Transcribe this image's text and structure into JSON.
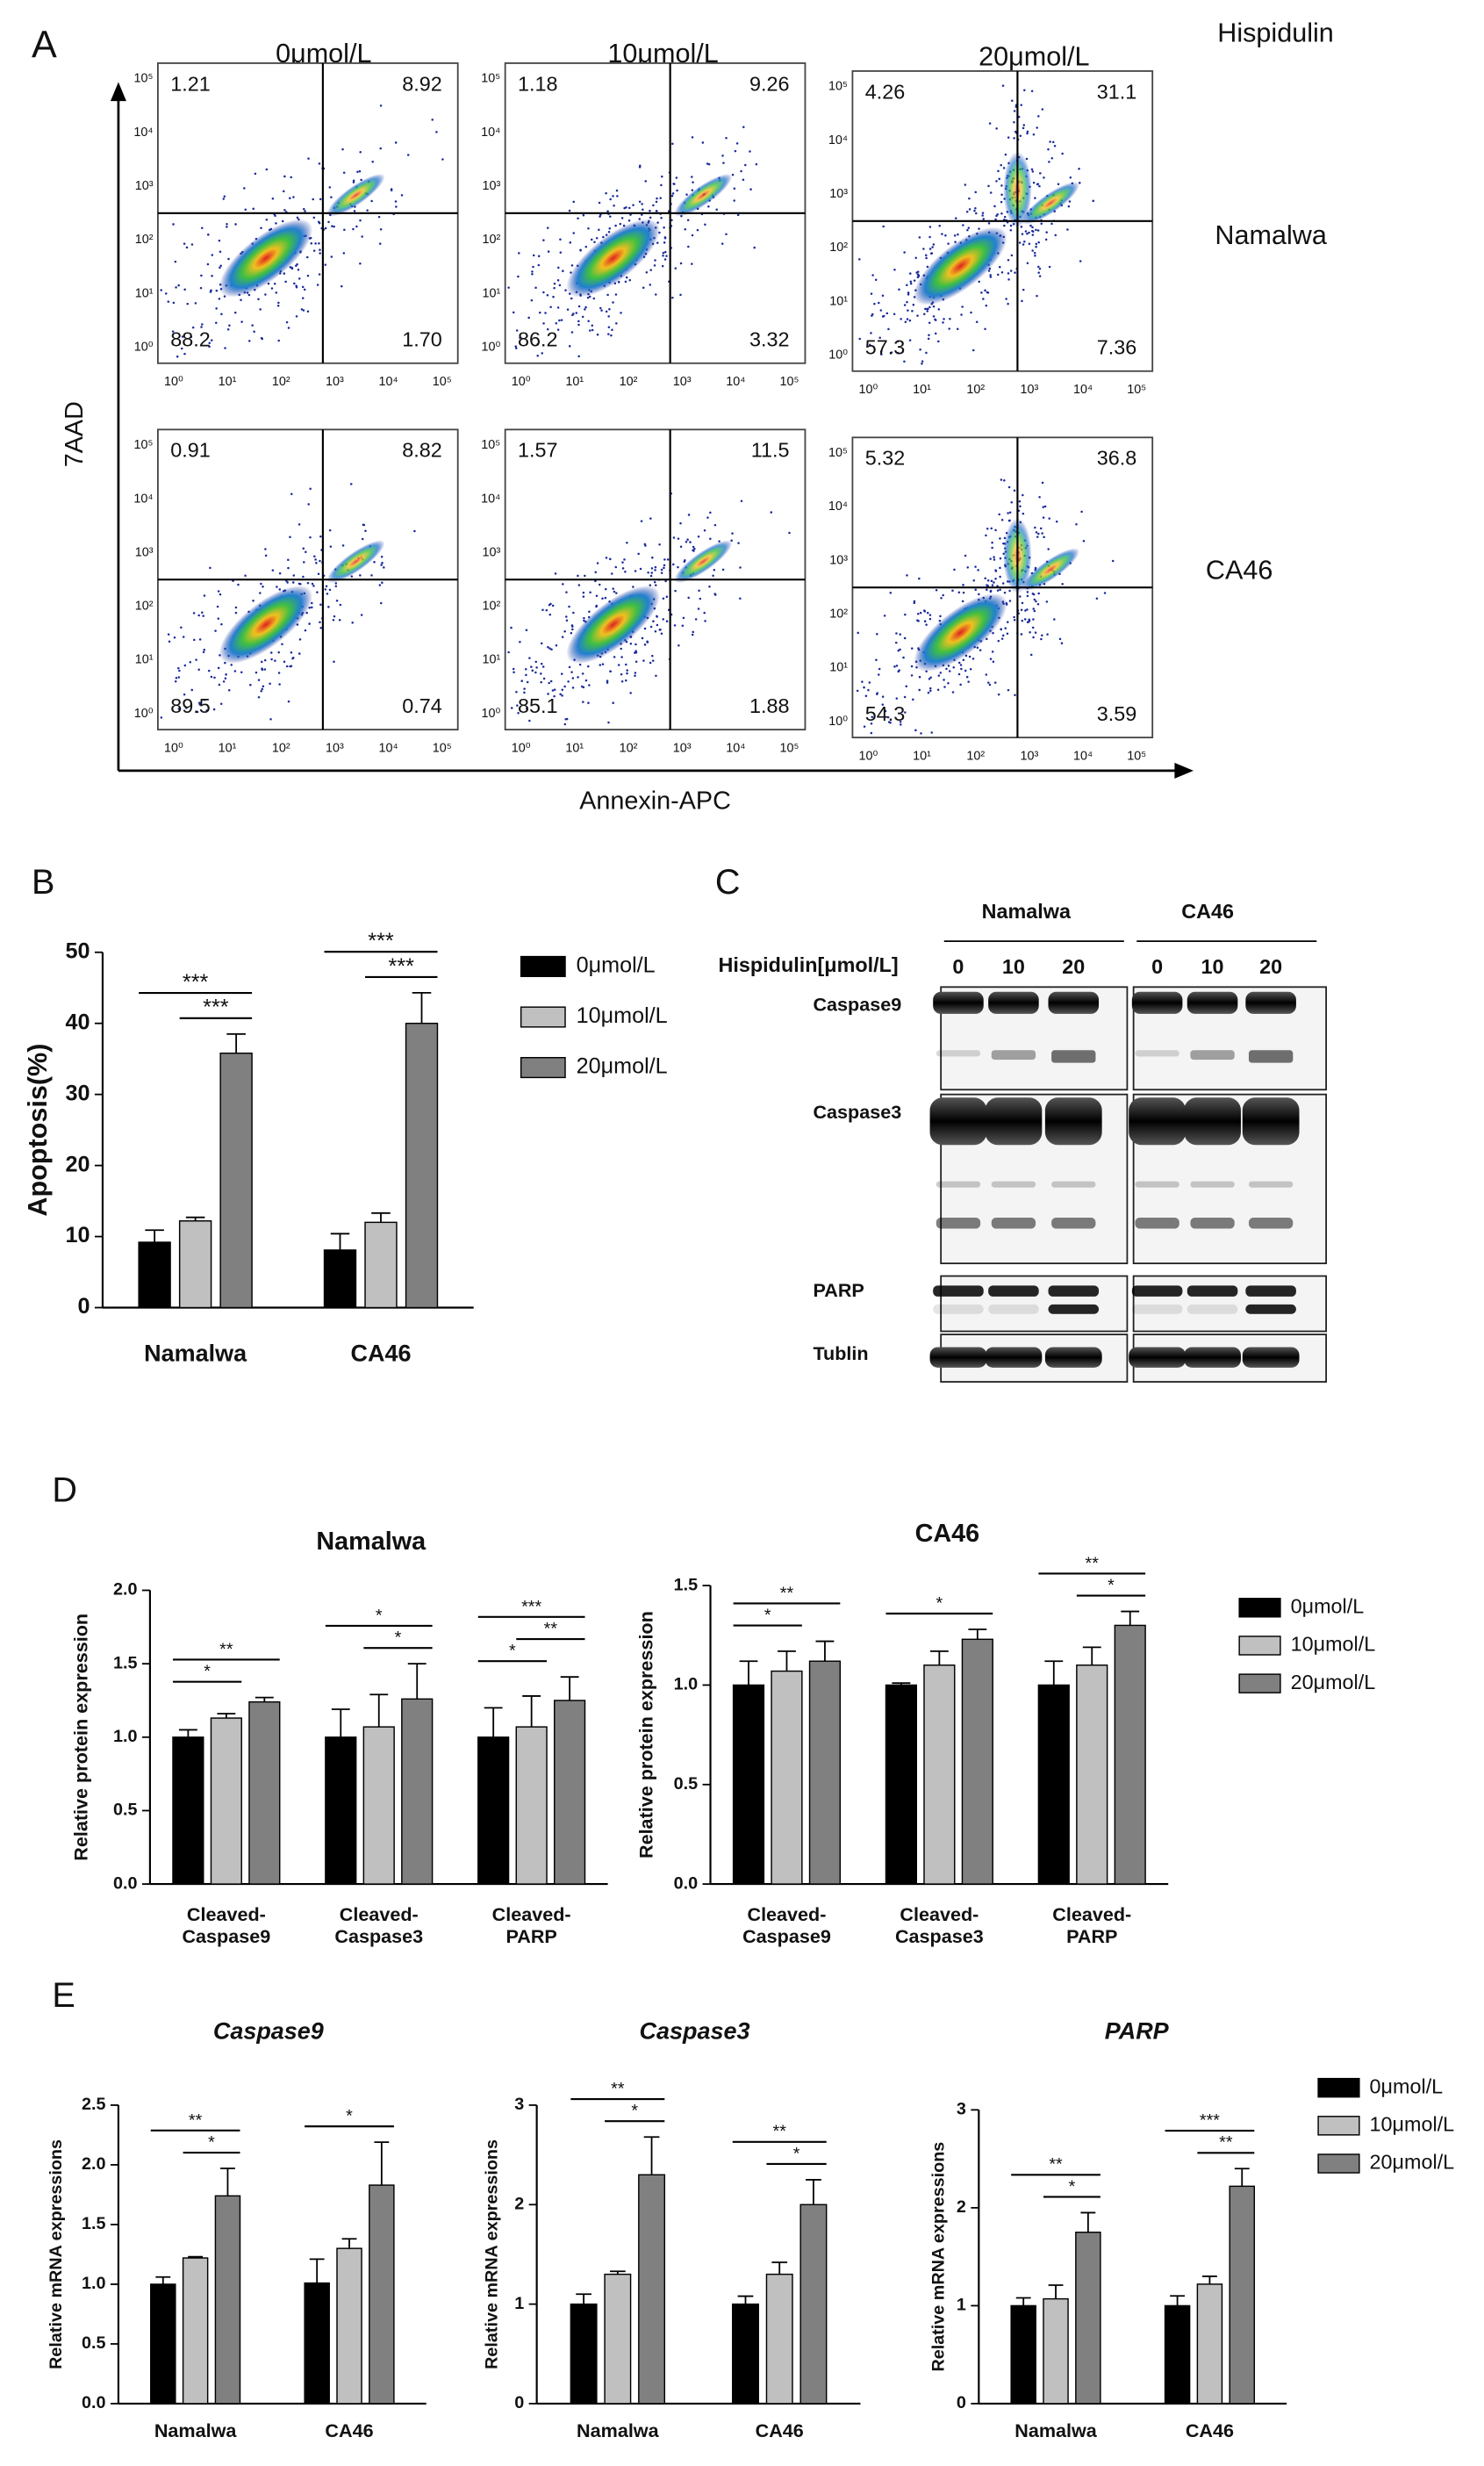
{
  "panel_labels": [
    "A",
    "B",
    "C",
    "D",
    "E"
  ],
  "flow": {
    "treatment": "Hispidulin",
    "columns": [
      "0μmol/L",
      "10μmol/L",
      "20μmol/L"
    ],
    "rows": [
      "Namalwa",
      "CA46"
    ],
    "x_label": "Annexin-APC",
    "y_label": "7AAD",
    "axis_ticks": [
      "10⁰",
      "10¹",
      "10²",
      "10³",
      "10⁴",
      "10⁵"
    ],
    "quadrants": [
      [
        [
          "1.21",
          "8.92",
          "88.2",
          "1.70"
        ],
        [
          "1.18",
          "9.26",
          "86.2",
          "3.32"
        ],
        [
          "4.26",
          "31.1",
          "57.3",
          "7.36"
        ]
      ],
      [
        [
          "0.91",
          "8.82",
          "89.5",
          "0.74"
        ],
        [
          "1.57",
          "11.5",
          "85.1",
          "1.88"
        ],
        [
          "5.32",
          "36.8",
          "54.3",
          "3.59"
        ]
      ]
    ]
  },
  "blot": {
    "groups": [
      "Namalwa",
      "CA46"
    ],
    "treatment_label": "Hispidulin[μmol/L]",
    "lanes": [
      "0",
      "10",
      "20"
    ],
    "proteins": [
      "Caspase9",
      "Caspase3",
      "PARP",
      "Tublin"
    ]
  },
  "chart_data": [
    {
      "type": "bar",
      "categories": [
        "Namalwa",
        "CA46"
      ],
      "ylabel": "Apoptosis(%)",
      "ylim": [
        0,
        50
      ],
      "yticks": [
        0,
        10,
        20,
        30,
        40,
        50
      ],
      "series": [
        {
          "name": "0μmol/L",
          "color": "#000000",
          "values": [
            9.2,
            8.1
          ],
          "errors": [
            1.7,
            2.3
          ]
        },
        {
          "name": "10μmol/L",
          "color": "#c0c0c0",
          "values": [
            12.2,
            12.0
          ],
          "errors": [
            0.5,
            1.3
          ]
        },
        {
          "name": "20μmol/L",
          "color": "#808080",
          "values": [
            35.8,
            40.0
          ],
          "errors": [
            2.7,
            4.3
          ]
        }
      ],
      "annotations": [
        "***",
        "***",
        "***",
        "***"
      ],
      "legend": "right"
    },
    {
      "type": "bar",
      "title": "Namalwa",
      "categories": [
        [
          "Cleaved-",
          "Caspase9"
        ],
        [
          "Cleaved-",
          "Caspase3"
        ],
        [
          "Cleaved-",
          "PARP"
        ]
      ],
      "ylabel": "Relative protein expression",
      "ylim": [
        0,
        2
      ],
      "yticks": [
        {
          "value": 0,
          "label": "0.0"
        },
        0.5,
        {
          "value": 1,
          "label": "1.0"
        },
        1.5,
        {
          "value": 2,
          "label": "2.0"
        }
      ],
      "series": [
        {
          "name": "0μmol/L",
          "color": "#000000",
          "values": [
            1.0,
            1.0,
            1.0
          ],
          "errors": [
            0.05,
            0.19,
            0.2
          ]
        },
        {
          "name": "10μmol/L",
          "color": "#c0c0c0",
          "values": [
            1.13,
            1.07,
            1.07
          ],
          "errors": [
            0.03,
            0.22,
            0.21
          ]
        },
        {
          "name": "20μmol/L",
          "color": "#808080",
          "values": [
            1.24,
            1.26,
            1.25
          ],
          "errors": [
            0.03,
            0.24,
            0.16
          ]
        }
      ],
      "annotations": [
        "*",
        "**",
        "*",
        "*",
        "***",
        "**",
        "*"
      ]
    },
    {
      "type": "bar",
      "title": "CA46",
      "categories": [
        [
          "Cleaved-",
          "Caspase9"
        ],
        [
          "Cleaved-",
          "Caspase3"
        ],
        [
          "Cleaved-",
          "PARP"
        ]
      ],
      "ylabel": "Relative protein expression",
      "ylim": [
        0,
        1.5
      ],
      "yticks": [
        {
          "value": 0,
          "label": "0.0"
        },
        0.5,
        {
          "value": 1,
          "label": "1.0"
        },
        1.5
      ],
      "series": [
        {
          "name": "0μmol/L",
          "color": "#000000",
          "values": [
            1.0,
            1.0,
            1.0
          ],
          "errors": [
            0.12,
            0.01,
            0.12
          ]
        },
        {
          "name": "10μmol/L",
          "color": "#c0c0c0",
          "values": [
            1.07,
            1.1,
            1.1
          ],
          "errors": [
            0.1,
            0.07,
            0.09
          ]
        },
        {
          "name": "20μmol/L",
          "color": "#808080",
          "values": [
            1.12,
            1.23,
            1.3
          ],
          "errors": [
            0.1,
            0.05,
            0.07
          ]
        }
      ],
      "annotations": [
        "*",
        "**",
        "*",
        "**",
        "*"
      ],
      "legend": "right"
    },
    {
      "type": "bar",
      "title": "Caspase9",
      "title_italic": true,
      "categories": [
        "Namalwa",
        "CA46"
      ],
      "ylabel": "Relative mRNA expressions",
      "ylim": [
        0,
        2.5
      ],
      "yticks": [
        {
          "value": 0,
          "label": "0.0"
        },
        0.5,
        {
          "value": 1,
          "label": "1.0"
        },
        1.5,
        {
          "value": 2,
          "label": "2.0"
        },
        2.5
      ],
      "series": [
        {
          "name": "0μmol/L",
          "color": "#000000",
          "values": [
            1.0,
            1.01
          ],
          "errors": [
            0.06,
            0.2
          ]
        },
        {
          "name": "10μmol/L",
          "color": "#c0c0c0",
          "values": [
            1.22,
            1.3
          ],
          "errors": [
            0.01,
            0.08
          ]
        },
        {
          "name": "20μmol/L",
          "color": "#808080",
          "values": [
            1.74,
            1.83
          ],
          "errors": [
            0.23,
            0.36
          ]
        }
      ],
      "annotations": [
        "**",
        "*",
        "*"
      ]
    },
    {
      "type": "bar",
      "title": "Caspase3",
      "title_italic": true,
      "categories": [
        "Namalwa",
        "CA46"
      ],
      "ylabel": "Relative mRNA expressions",
      "ylim": [
        0,
        3
      ],
      "yticks": [
        0,
        1,
        2,
        3
      ],
      "series": [
        {
          "name": "0μmol/L",
          "color": "#000000",
          "values": [
            1.0,
            1.0
          ],
          "errors": [
            0.1,
            0.08
          ]
        },
        {
          "name": "10μmol/L",
          "color": "#c0c0c0",
          "values": [
            1.3,
            1.3
          ],
          "errors": [
            0.03,
            0.12
          ]
        },
        {
          "name": "20μmol/L",
          "color": "#808080",
          "values": [
            2.3,
            2.0
          ],
          "errors": [
            0.38,
            0.25
          ]
        }
      ],
      "annotations": [
        "**",
        "*",
        "**",
        "*"
      ]
    },
    {
      "type": "bar",
      "title": "PARP",
      "title_italic": true,
      "categories": [
        "Namalwa",
        "CA46"
      ],
      "ylabel": "Relative mRNA expressions",
      "ylim": [
        0,
        3
      ],
      "yticks": [
        0,
        1,
        2,
        3
      ],
      "series": [
        {
          "name": "0μmol/L",
          "color": "#000000",
          "values": [
            1.0,
            1.0
          ],
          "errors": [
            0.08,
            0.1
          ]
        },
        {
          "name": "10μmol/L",
          "color": "#c0c0c0",
          "values": [
            1.07,
            1.22
          ],
          "errors": [
            0.14,
            0.08
          ]
        },
        {
          "name": "20μmol/L",
          "color": "#808080",
          "values": [
            1.75,
            2.22
          ],
          "errors": [
            0.2,
            0.18
          ]
        }
      ],
      "annotations": [
        "**",
        "*",
        "***",
        "**"
      ],
      "legend": "right"
    }
  ]
}
